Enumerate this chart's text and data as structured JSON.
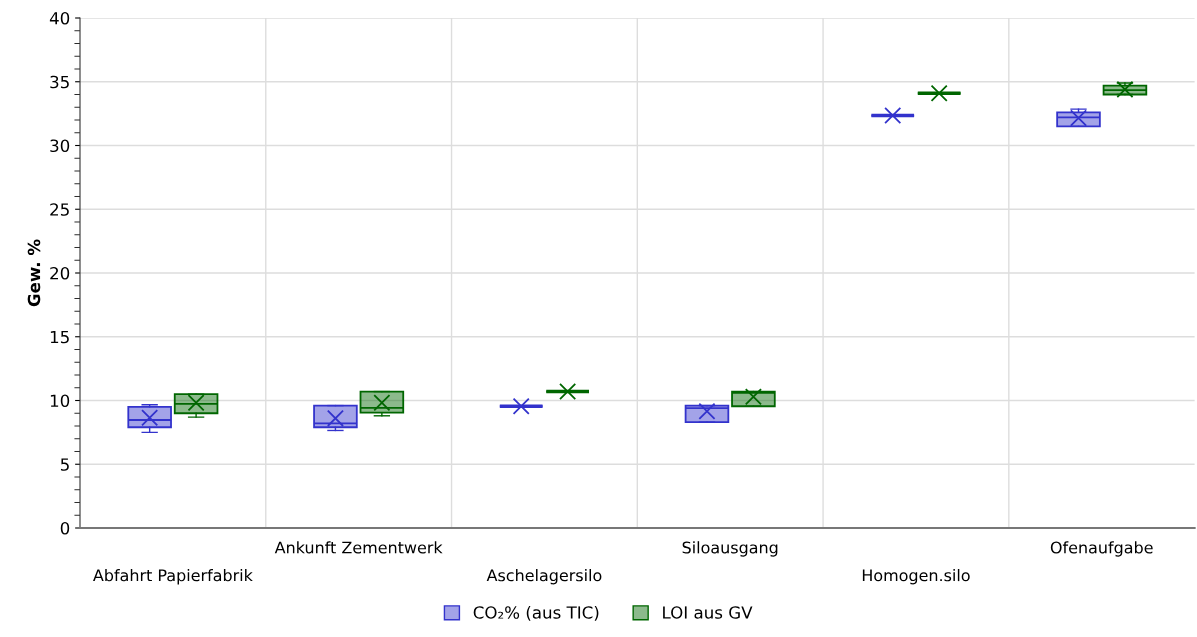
{
  "chart_data": {
    "type": "box",
    "ylabel": "Gew. %",
    "categories": [
      "Abfahrt Papierfabrik",
      "Ankunft Zementwerk",
      "Aschelagersilo",
      "Siloausgang",
      "Homogen.silo",
      "Ofenaufgabe"
    ],
    "series": [
      {
        "name": "CO₂% (aus TIC)",
        "color": "#3333cc",
        "boxes": [
          {
            "low": 7.5,
            "q1": 7.9,
            "median": 8.47,
            "q3": 9.5,
            "high": 9.67,
            "mean": 8.65
          },
          {
            "low": 7.65,
            "q1": 7.9,
            "median": 8.2,
            "q3": 9.6,
            "high": 9.6,
            "mean": 8.6
          },
          {
            "low": 9.55,
            "q1": 9.55,
            "median": 9.55,
            "q3": 9.55,
            "high": 9.55,
            "mean": 9.55
          },
          {
            "low": 8.3,
            "q1": 8.3,
            "median": 9.4,
            "q3": 9.6,
            "high": 9.6,
            "mean": 9.15
          },
          {
            "low": 32.35,
            "q1": 32.35,
            "median": 32.35,
            "q3": 32.35,
            "high": 32.35,
            "mean": 32.35
          },
          {
            "low": 31.5,
            "q1": 31.5,
            "median": 32.2,
            "q3": 32.6,
            "high": 32.85,
            "mean": 32.15
          }
        ]
      },
      {
        "name": "LOI aus GV",
        "color": "#006600",
        "boxes": [
          {
            "low": 8.7,
            "q1": 9.0,
            "median": 9.73,
            "q3": 10.5,
            "high": 10.5,
            "mean": 9.83
          },
          {
            "low": 8.8,
            "q1": 9.05,
            "median": 9.42,
            "q3": 10.7,
            "high": 10.7,
            "mean": 9.83
          },
          {
            "low": 10.7,
            "q1": 10.7,
            "median": 10.7,
            "q3": 10.7,
            "high": 10.7,
            "mean": 10.7
          },
          {
            "low": 9.55,
            "q1": 9.55,
            "median": 10.6,
            "q3": 10.7,
            "high": 10.7,
            "mean": 10.3
          },
          {
            "low": 34.1,
            "q1": 34.1,
            "median": 34.1,
            "q3": 34.1,
            "high": 34.1,
            "mean": 34.1
          },
          {
            "low": 34.0,
            "q1": 34.0,
            "median": 34.35,
            "q3": 34.7,
            "high": 34.9,
            "mean": 34.4
          }
        ]
      }
    ],
    "ylim": [
      0,
      40
    ],
    "yticks": [
      0,
      5,
      10,
      15,
      20,
      25,
      30,
      35,
      40
    ],
    "grid": true,
    "legend": "bottom",
    "marker": "cross"
  }
}
